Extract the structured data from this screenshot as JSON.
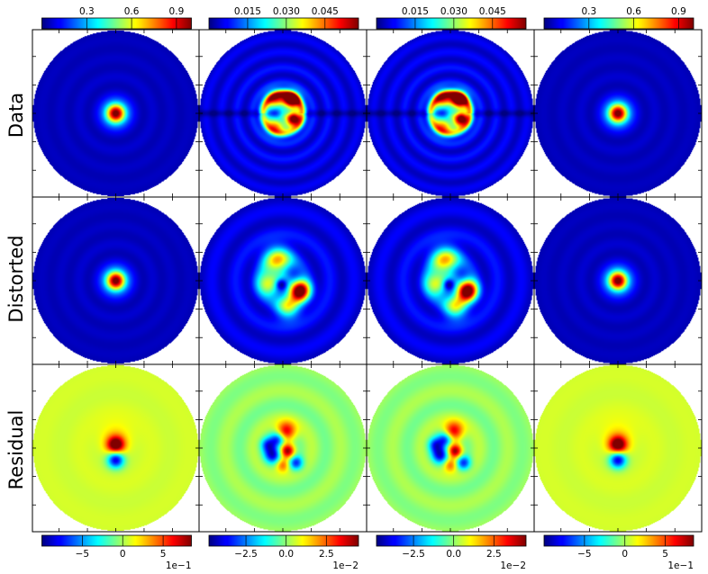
{
  "chart_data": {
    "type": "heatmap",
    "layout": {
      "rows": 3,
      "columns": 4
    },
    "row_labels": [
      "Data",
      "Distorted",
      "Residual"
    ],
    "colormap": "jet",
    "top_colorbars": [
      {
        "column": 0,
        "ticks": [
          "0.3",
          "0.6",
          "0.9"
        ],
        "tick_values": [
          0.3,
          0.6,
          0.9
        ],
        "range": [
          0.0,
          1.0
        ]
      },
      {
        "column": 1,
        "ticks": [
          "0.015",
          "0.030",
          "0.045"
        ],
        "tick_values": [
          0.015,
          0.03,
          0.045
        ],
        "range": [
          0.0,
          0.058
        ]
      },
      {
        "column": 2,
        "ticks": [
          "0.015",
          "0.030",
          "0.045"
        ],
        "tick_values": [
          0.015,
          0.03,
          0.045
        ],
        "range": [
          0.0,
          0.058
        ]
      },
      {
        "column": 3,
        "ticks": [
          "0.3",
          "0.6",
          "0.9"
        ],
        "tick_values": [
          0.3,
          0.6,
          0.9
        ],
        "range": [
          0.0,
          1.0
        ]
      }
    ],
    "bottom_colorbars": [
      {
        "column": 0,
        "ticks": [
          "−5",
          "0",
          "5"
        ],
        "tick_values": [
          -5,
          0,
          5
        ],
        "range": [
          -10,
          8.5
        ],
        "multiplier": "1e−1"
      },
      {
        "column": 1,
        "ticks": [
          "−2.5",
          "0.0",
          "2.5"
        ],
        "tick_values": [
          -2.5,
          0.0,
          2.5
        ],
        "range": [
          -4.8,
          4.5
        ],
        "multiplier": "1e−2"
      },
      {
        "column": 2,
        "ticks": [
          "−2.5",
          "0.0",
          "2.5"
        ],
        "tick_values": [
          -2.5,
          0.0,
          2.5
        ],
        "range": [
          -4.8,
          4.5
        ],
        "multiplier": "1e−2"
      },
      {
        "column": 3,
        "ticks": [
          "−5",
          "0",
          "5"
        ],
        "tick_values": [
          -5,
          0,
          5
        ],
        "range": [
          -10,
          8.5
        ],
        "multiplier": "1e−1"
      }
    ],
    "panels": [
      {
        "row": 0,
        "column": 0,
        "pattern": "core",
        "peak": 1.0
      },
      {
        "row": 0,
        "column": 1,
        "pattern": "split",
        "peak": 0.055
      },
      {
        "row": 0,
        "column": 2,
        "pattern": "split",
        "peak": 0.055
      },
      {
        "row": 0,
        "column": 3,
        "pattern": "core",
        "peak": 1.0
      },
      {
        "row": 1,
        "column": 0,
        "pattern": "core",
        "peak": 1.0
      },
      {
        "row": 1,
        "column": 1,
        "pattern": "distorted",
        "peak": 0.055
      },
      {
        "row": 1,
        "column": 2,
        "pattern": "distorted",
        "peak": 0.055
      },
      {
        "row": 1,
        "column": 3,
        "pattern": "core",
        "peak": 1.0
      },
      {
        "row": 2,
        "column": 0,
        "pattern": "residual-core",
        "peak": 0.8
      },
      {
        "row": 2,
        "column": 1,
        "pattern": "residual-split",
        "peak": 0.04
      },
      {
        "row": 2,
        "column": 2,
        "pattern": "residual-split",
        "peak": 0.04
      },
      {
        "row": 2,
        "column": 3,
        "pattern": "residual-core",
        "peak": 0.8
      }
    ]
  }
}
